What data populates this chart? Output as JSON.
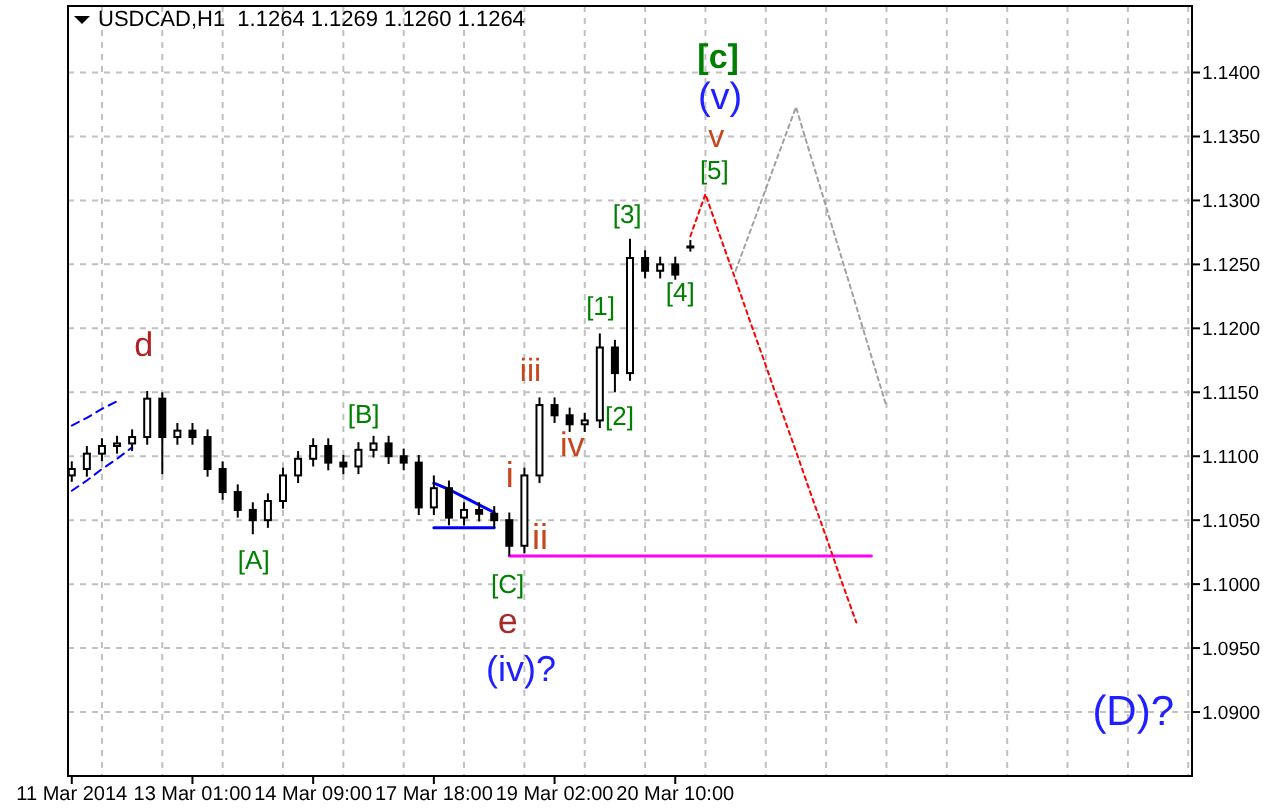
{
  "chart_data": {
    "type": "candlestick",
    "title": "USDCAD,H1  1.1264 1.1269 1.1260 1.1264",
    "color": "#000000",
    "grid": true,
    "categories": [
      "11 Mar 2014",
      null,
      null,
      null,
      null,
      null,
      null,
      null,
      "13 Mar 01:00",
      null,
      null,
      null,
      null,
      null,
      null,
      null,
      "14 Mar 09:00",
      null,
      null,
      null,
      null,
      null,
      null,
      null,
      "17 Mar 18:00",
      null,
      null,
      null,
      null,
      null,
      null,
      null,
      "19 Mar 02:00",
      null,
      null,
      null,
      null,
      null,
      null,
      null,
      "20 Mar 10:00",
      null,
      null,
      null,
      null,
      null,
      null,
      null,
      null,
      null,
      null,
      null,
      null,
      null,
      null,
      null,
      null,
      null,
      null,
      null,
      null,
      null,
      null,
      null,
      null,
      null,
      null,
      null,
      null,
      null,
      null,
      null,
      null,
      null,
      null
    ],
    "ohlc": [
      [
        1.1085,
        1.1096,
        1.108,
        1.109
      ],
      [
        1.109,
        1.1108,
        1.1084,
        1.1102
      ],
      [
        1.1102,
        1.1114,
        1.1096,
        1.1108
      ],
      [
        1.1108,
        1.1116,
        1.1102,
        1.111
      ],
      [
        1.111,
        1.1121,
        1.1104,
        1.1115
      ],
      [
        1.1115,
        1.1151,
        1.1109,
        1.1145
      ],
      [
        1.1145,
        1.115,
        1.1086,
        1.1115
      ],
      [
        1.1115,
        1.1126,
        1.1109,
        1.112
      ],
      [
        1.112,
        1.1126,
        1.1109,
        1.1115
      ],
      [
        1.1115,
        1.1121,
        1.1084,
        1.109
      ],
      [
        1.109,
        1.1096,
        1.1066,
        1.1072
      ],
      [
        1.1072,
        1.1078,
        1.1052,
        1.1058
      ],
      [
        1.1058,
        1.1064,
        1.1039,
        1.105
      ],
      [
        1.105,
        1.1071,
        1.1044,
        1.1065
      ],
      [
        1.1065,
        1.1091,
        1.1059,
        1.1085
      ],
      [
        1.1085,
        1.1104,
        1.1079,
        1.1098
      ],
      [
        1.1098,
        1.1114,
        1.1092,
        1.1108
      ],
      [
        1.1108,
        1.1114,
        1.1089,
        1.1095
      ],
      [
        1.1095,
        1.1101,
        1.1086,
        1.1092
      ],
      [
        1.1092,
        1.1111,
        1.1086,
        1.1105
      ],
      [
        1.1105,
        1.1116,
        1.1099,
        1.111
      ],
      [
        1.111,
        1.1116,
        1.1094,
        1.11
      ],
      [
        1.11,
        1.1106,
        1.1089,
        1.1095
      ],
      [
        1.1095,
        1.1101,
        1.1054,
        1.106
      ],
      [
        1.106,
        1.1085,
        1.1054,
        1.1075
      ],
      [
        1.1075,
        1.1081,
        1.1046,
        1.1052
      ],
      [
        1.1052,
        1.1064,
        1.1046,
        1.1058
      ],
      [
        1.1058,
        1.1064,
        1.1049,
        1.1055
      ],
      [
        1.1055,
        1.1061,
        1.1044,
        1.105
      ],
      [
        1.105,
        1.1056,
        1.1022,
        1.103
      ],
      [
        1.103,
        1.1091,
        1.1024,
        1.1085
      ],
      [
        1.1085,
        1.1146,
        1.1079,
        1.114
      ],
      [
        1.114,
        1.1146,
        1.1126,
        1.1132
      ],
      [
        1.1132,
        1.1138,
        1.1119,
        1.1125
      ],
      [
        1.1125,
        1.1134,
        1.1119,
        1.1128
      ],
      [
        1.1128,
        1.1196,
        1.1122,
        1.1185
      ],
      [
        1.1185,
        1.1191,
        1.115,
        1.1165
      ],
      [
        1.1165,
        1.127,
        1.1159,
        1.1255
      ],
      [
        1.1255,
        1.1261,
        1.1239,
        1.1245
      ],
      [
        1.1245,
        1.1256,
        1.1239,
        1.125
      ],
      [
        1.125,
        1.1256,
        1.1238,
        1.1242
      ],
      [
        1.1264,
        1.1269,
        1.126,
        1.1264
      ],
      null,
      null,
      null,
      null,
      null,
      null,
      null,
      null,
      null,
      null,
      null,
      null,
      null,
      null,
      null,
      null,
      null,
      null,
      null,
      null,
      null,
      null,
      null,
      null,
      null,
      null,
      null,
      null,
      null,
      null,
      null,
      null,
      null
    ],
    "series": [
      {
        "type": "line",
        "color": "#0000ff",
        "line_style": "dashed",
        "values": [
          1.1124,
          1.113,
          1.1137,
          1.1143,
          null,
          null,
          null,
          null,
          null,
          null,
          null,
          null,
          null,
          null,
          null,
          null,
          null,
          null,
          null,
          null,
          null,
          null,
          null,
          null,
          null,
          null,
          null,
          null,
          null,
          null,
          null,
          null,
          null,
          null,
          null,
          null,
          null,
          null,
          null,
          null,
          null,
          null,
          null,
          null,
          null,
          null,
          null,
          null,
          null,
          null,
          null,
          null,
          null,
          null,
          null,
          null,
          null,
          null,
          null,
          null,
          null,
          null,
          null,
          null,
          null,
          null,
          null,
          null,
          null,
          null,
          null,
          null,
          null,
          null,
          null
        ]
      },
      {
        "type": "line",
        "color": "#0000ff",
        "line_style": "dashed",
        "values": [
          1.1073,
          1.1081,
          1.109,
          1.1098,
          1.1107,
          null,
          null,
          null,
          null,
          null,
          null,
          null,
          null,
          null,
          null,
          null,
          null,
          null,
          null,
          null,
          null,
          null,
          null,
          null,
          null,
          null,
          null,
          null,
          null,
          null,
          null,
          null,
          null,
          null,
          null,
          null,
          null,
          null,
          null,
          null,
          null,
          null,
          null,
          null,
          null,
          null,
          null,
          null,
          null,
          null,
          null,
          null,
          null,
          null,
          null,
          null,
          null,
          null,
          null,
          null,
          null,
          null,
          null,
          null,
          null,
          null,
          null,
          null,
          null,
          null,
          null,
          null,
          null,
          null,
          null
        ]
      },
      {
        "type": "line",
        "color": "#0000ff",
        "line_style": "solid",
        "values": [
          null,
          null,
          null,
          null,
          null,
          null,
          null,
          null,
          null,
          null,
          null,
          null,
          null,
          null,
          null,
          null,
          null,
          null,
          null,
          null,
          null,
          null,
          null,
          null,
          1.1079,
          1.1074,
          1.1068,
          1.1062,
          1.1056,
          null,
          null,
          null,
          null,
          null,
          null,
          null,
          null,
          null,
          null,
          null,
          null,
          null,
          null,
          null,
          null,
          null,
          null,
          null,
          null,
          null,
          null,
          null,
          null,
          null,
          null,
          null,
          null,
          null,
          null,
          null,
          null,
          null,
          null,
          null,
          null,
          null,
          null,
          null,
          null,
          null,
          null,
          null,
          null,
          null,
          null
        ]
      },
      {
        "type": "line",
        "color": "#0000ff",
        "line_style": "solid",
        "values": [
          null,
          null,
          null,
          null,
          null,
          null,
          null,
          null,
          null,
          null,
          null,
          null,
          null,
          null,
          null,
          null,
          null,
          null,
          null,
          null,
          null,
          null,
          null,
          null,
          1.1044,
          1.1044,
          1.1044,
          1.1044,
          1.1044,
          null,
          null,
          null,
          null,
          null,
          null,
          null,
          null,
          null,
          null,
          null,
          null,
          null,
          null,
          null,
          null,
          null,
          null,
          null,
          null,
          null,
          null,
          null,
          null,
          null,
          null,
          null,
          null,
          null,
          null,
          null,
          null,
          null,
          null,
          null,
          null,
          null,
          null,
          null,
          null,
          null,
          null,
          null,
          null,
          null,
          null
        ]
      },
      {
        "type": "line",
        "color": "#ff00ff",
        "line_style": "solid",
        "values": [
          null,
          null,
          null,
          null,
          null,
          null,
          null,
          null,
          null,
          null,
          null,
          null,
          null,
          null,
          null,
          null,
          null,
          null,
          null,
          null,
          null,
          null,
          null,
          null,
          null,
          null,
          null,
          null,
          null,
          1.1022,
          1.1022,
          1.1022,
          1.1022,
          1.1022,
          1.1022,
          1.1022,
          1.1022,
          1.1022,
          1.1022,
          1.1022,
          1.1022,
          1.1022,
          1.1022,
          1.1022,
          1.1022,
          1.1022,
          1.1022,
          1.1022,
          1.1022,
          1.1022,
          1.1022,
          1.1022,
          1.1022,
          1.1022,
          null,
          null,
          null,
          null,
          null,
          null,
          null,
          null,
          null,
          null,
          null,
          null,
          null,
          null,
          null,
          null,
          null,
          null,
          null,
          null,
          null
        ]
      },
      {
        "type": "line",
        "color": "#ff0000",
        "line_style": "dotted",
        "values": [
          null,
          null,
          null,
          null,
          null,
          null,
          null,
          null,
          null,
          null,
          null,
          null,
          null,
          null,
          null,
          null,
          null,
          null,
          null,
          null,
          null,
          null,
          null,
          null,
          null,
          null,
          null,
          null,
          null,
          null,
          null,
          null,
          null,
          null,
          null,
          null,
          null,
          null,
          null,
          null,
          null,
          1.1272,
          1.1305,
          1.1271,
          1.1238,
          1.1204,
          1.1171,
          1.1137,
          1.1104,
          1.107,
          1.1037,
          1.1003,
          1.097,
          null,
          null,
          null,
          null,
          null,
          null,
          null,
          null,
          null,
          null,
          null,
          null,
          null,
          null,
          null,
          null,
          null,
          null,
          null,
          null,
          null,
          null
        ]
      },
      {
        "type": "line",
        "color": "#a0a0a0",
        "line_style": "dotted",
        "values": [
          null,
          null,
          null,
          null,
          null,
          null,
          null,
          null,
          null,
          null,
          null,
          null,
          null,
          null,
          null,
          null,
          null,
          null,
          null,
          null,
          null,
          null,
          null,
          null,
          null,
          null,
          null,
          null,
          null,
          null,
          null,
          null,
          null,
          null,
          null,
          null,
          null,
          null,
          null,
          null,
          null,
          null,
          null,
          null,
          1.1245,
          1.1277,
          1.1309,
          1.1341,
          1.1373,
          1.1334,
          1.1295,
          1.1256,
          1.1217,
          1.1178,
          1.1139,
          null,
          null,
          null,
          null,
          null,
          null,
          null,
          null,
          null,
          null,
          null,
          null,
          null,
          null,
          null,
          null,
          null,
          null,
          null,
          null
        ]
      }
    ],
    "ylim": [
      1.085,
      1.1452
    ],
    "yticks": [
      {
        "value": 1.09,
        "label": "1.0900"
      },
      {
        "value": 1.095,
        "label": "1.0950"
      },
      {
        "value": 1.1,
        "label": "1.1000"
      },
      {
        "value": 1.105,
        "label": "1.1050"
      },
      {
        "value": 1.11,
        "label": "1.1100"
      },
      {
        "value": 1.115,
        "label": "1.1150"
      },
      {
        "value": 1.12,
        "label": "1.1200"
      },
      {
        "value": 1.125,
        "label": "1.1250"
      },
      {
        "value": 1.13,
        "label": "1.1300"
      },
      {
        "value": 1.135,
        "label": "1.1350"
      },
      {
        "value": 1.14,
        "label": "1.1400"
      }
    ],
    "annotations": [
      "d",
      "[A]",
      "[B]",
      "[C]",
      "e",
      "(iv)?",
      "i",
      "ii",
      "iii",
      "iv",
      "[1]",
      "[2]",
      "[3]",
      "[4]",
      "[5]",
      "v",
      "(v)",
      "[c]",
      "(D)?"
    ]
  }
}
